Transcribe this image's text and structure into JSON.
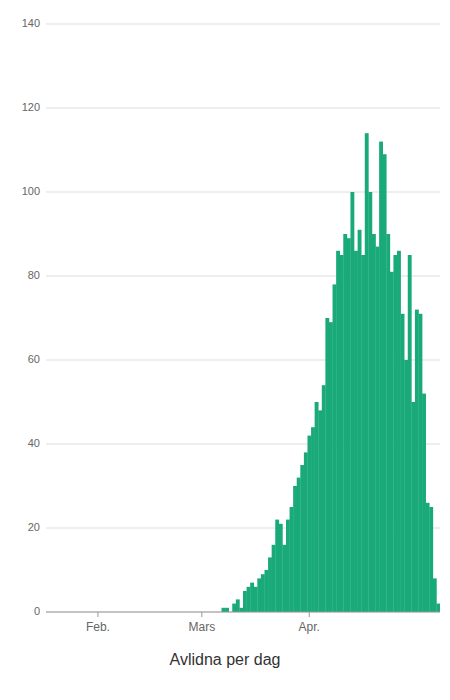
{
  "chart_data": {
    "type": "bar",
    "title": "Avlidna per dag",
    "categories": [
      null,
      null,
      null,
      null,
      null,
      null,
      null,
      null,
      null,
      null,
      null,
      null,
      null,
      null,
      "Feb.",
      null,
      null,
      null,
      null,
      null,
      null,
      null,
      null,
      null,
      null,
      null,
      null,
      null,
      null,
      null,
      null,
      null,
      null,
      null,
      null,
      null,
      null,
      null,
      null,
      null,
      null,
      null,
      null,
      "Mars",
      null,
      null,
      null,
      null,
      null,
      null,
      null,
      null,
      null,
      null,
      null,
      null,
      null,
      null,
      null,
      null,
      null,
      null,
      null,
      null,
      null,
      null,
      null,
      null,
      null,
      null,
      null,
      null,
      null,
      "Apr.",
      null,
      null,
      null,
      null,
      null,
      null,
      null,
      null,
      null,
      null,
      null,
      null,
      null,
      null,
      null,
      null,
      null,
      null,
      null,
      null,
      null,
      null,
      null,
      null,
      null,
      null,
      null,
      null,
      null,
      null,
      null,
      null,
      null,
      null,
      null,
      null
    ],
    "values": [
      0,
      0,
      0,
      0,
      0,
      0,
      0,
      0,
      0,
      0,
      0,
      0,
      0,
      0,
      0,
      0,
      0,
      0,
      0,
      0,
      0,
      0,
      0,
      0,
      0,
      0,
      0,
      0,
      0,
      0,
      0,
      0,
      0,
      0,
      0,
      0,
      0,
      0,
      0,
      0,
      0,
      0,
      0,
      0,
      0,
      0,
      0,
      0,
      0,
      1,
      1,
      0,
      2,
      3,
      1,
      5,
      6,
      7,
      6,
      8,
      9,
      10,
      13,
      16,
      22,
      21,
      16,
      22,
      25,
      30,
      32,
      35,
      38,
      42,
      44,
      50,
      48,
      54,
      70,
      69,
      78,
      86,
      85,
      90,
      89,
      100,
      86,
      91,
      85,
      114,
      100,
      90,
      87,
      112,
      109,
      90,
      81,
      85,
      86,
      71,
      60,
      85,
      50,
      72,
      71,
      52,
      26,
      25,
      8,
      2
    ],
    "color": "#1aaa7a",
    "ylim": [
      0,
      140
    ],
    "yticks": [
      0,
      20,
      40,
      60,
      80,
      100,
      120,
      140
    ],
    "grid": true
  }
}
